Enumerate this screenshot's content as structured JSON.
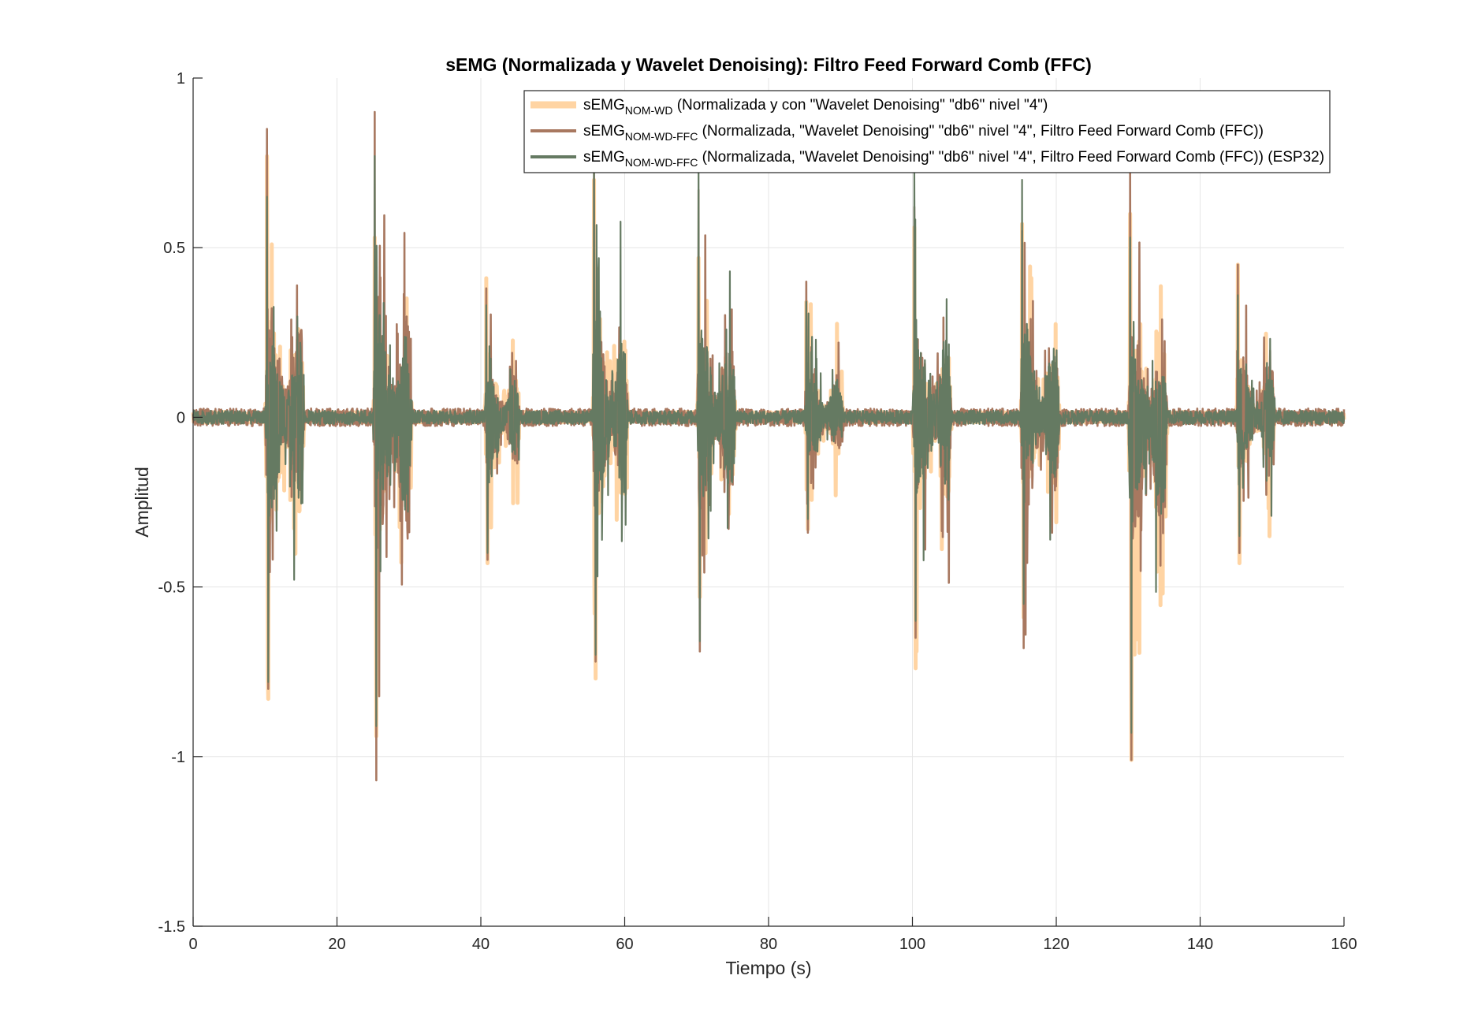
{
  "chart_data": {
    "type": "line",
    "title": "sEMG (Normalizada y Wavelet Denoising): Filtro Feed Forward Comb (FFC)",
    "xlabel": "Tiempo (s)",
    "ylabel": "Amplitud",
    "xlim": [
      0,
      160
    ],
    "ylim": [
      -1.5,
      1
    ],
    "xticks": [
      0,
      20,
      40,
      60,
      80,
      100,
      120,
      140,
      160
    ],
    "xtick_labels": [
      "0",
      "20",
      "40",
      "60",
      "80",
      "100",
      "120",
      "140",
      "160"
    ],
    "yticks": [
      -1.5,
      -1,
      -0.5,
      0,
      0.5,
      1
    ],
    "ytick_labels": [
      "-1.5",
      "-1",
      "-0.5",
      "0",
      "0.5",
      "1"
    ],
    "grid": true,
    "legend_position": "top-right",
    "bursts": [
      {
        "start": 10,
        "end": 15.5,
        "max_nom_wd": 0.77,
        "min_nom_wd": -0.83,
        "max_ffc": 0.85,
        "min_ffc": -0.8,
        "max_esp32": 0.65,
        "min_esp32": -0.78
      },
      {
        "start": 25,
        "end": 30.5,
        "max_nom_wd": 0.53,
        "min_nom_wd": -0.94,
        "max_ffc": 0.9,
        "min_ffc": -1.07,
        "max_esp32": 0.77,
        "min_esp32": -0.91
      },
      {
        "start": 40.5,
        "end": 45.5,
        "max_nom_wd": 0.41,
        "min_nom_wd": -0.43,
        "max_ffc": 0.38,
        "min_ffc": -0.42,
        "max_esp32": 0.33,
        "min_esp32": -0.4
      },
      {
        "start": 55.5,
        "end": 60.5,
        "max_nom_wd": 0.7,
        "min_nom_wd": -0.77,
        "max_ffc": 0.73,
        "min_ffc": -0.72,
        "max_esp32": 0.76,
        "min_esp32": -0.7
      },
      {
        "start": 70,
        "end": 75.5,
        "max_nom_wd": 0.47,
        "min_nom_wd": -0.53,
        "max_ffc": 0.67,
        "min_ffc": -0.69,
        "max_esp32": 0.74,
        "min_esp32": -0.66
      },
      {
        "start": 85,
        "end": 90.5,
        "max_nom_wd": 0.34,
        "min_nom_wd": -0.33,
        "max_ffc": 0.4,
        "min_ffc": -0.34,
        "max_esp32": 0.34,
        "min_esp32": -0.3
      },
      {
        "start": 100,
        "end": 105.5,
        "max_nom_wd": 0.56,
        "min_nom_wd": -0.74,
        "max_ffc": 0.62,
        "min_ffc": -0.65,
        "max_esp32": 0.73,
        "min_esp32": -0.6
      },
      {
        "start": 115,
        "end": 120.5,
        "max_nom_wd": 0.57,
        "min_nom_wd": -0.59,
        "max_ffc": 0.55,
        "min_ffc": -0.68,
        "max_esp32": 0.7,
        "min_esp32": -0.55
      },
      {
        "start": 130,
        "end": 135.5,
        "max_nom_wd": 0.6,
        "min_nom_wd": -1.01,
        "max_ffc": 0.73,
        "min_ffc": -1.01,
        "max_esp32": 0.53,
        "min_esp32": -0.93
      },
      {
        "start": 145,
        "end": 150.5,
        "max_nom_wd": 0.45,
        "min_nom_wd": -0.43,
        "max_ffc": 0.45,
        "min_ffc": -0.4,
        "max_esp32": 0.36,
        "min_esp32": -0.35
      }
    ],
    "baseline_noise": 0.02,
    "series": [
      {
        "name_main": "sEMG",
        "name_sub": "NOM-WD",
        "name_rest": " (Normalizada y con \"Wavelet Denoising\" \"db6\" nivel \"4\")",
        "color": "#FFD4A3",
        "key": "nom_wd"
      },
      {
        "name_main": "sEMG",
        "name_sub": "NOM-WD-FFC",
        "name_rest": " (Normalizada, \"Wavelet Denoising\" \"db6\" nivel \"4\", Filtro Feed Forward Comb (FFC))",
        "color": "#A87860",
        "key": "ffc"
      },
      {
        "name_main": "sEMG",
        "name_sub": "NOM-WD-FFC",
        "name_rest": " (Normalizada, \"Wavelet Denoising\" \"db6\" nivel \"4\", Filtro Feed Forward Comb (FFC)) (ESP32)",
        "color": "#657A62",
        "key": "esp32"
      }
    ]
  }
}
